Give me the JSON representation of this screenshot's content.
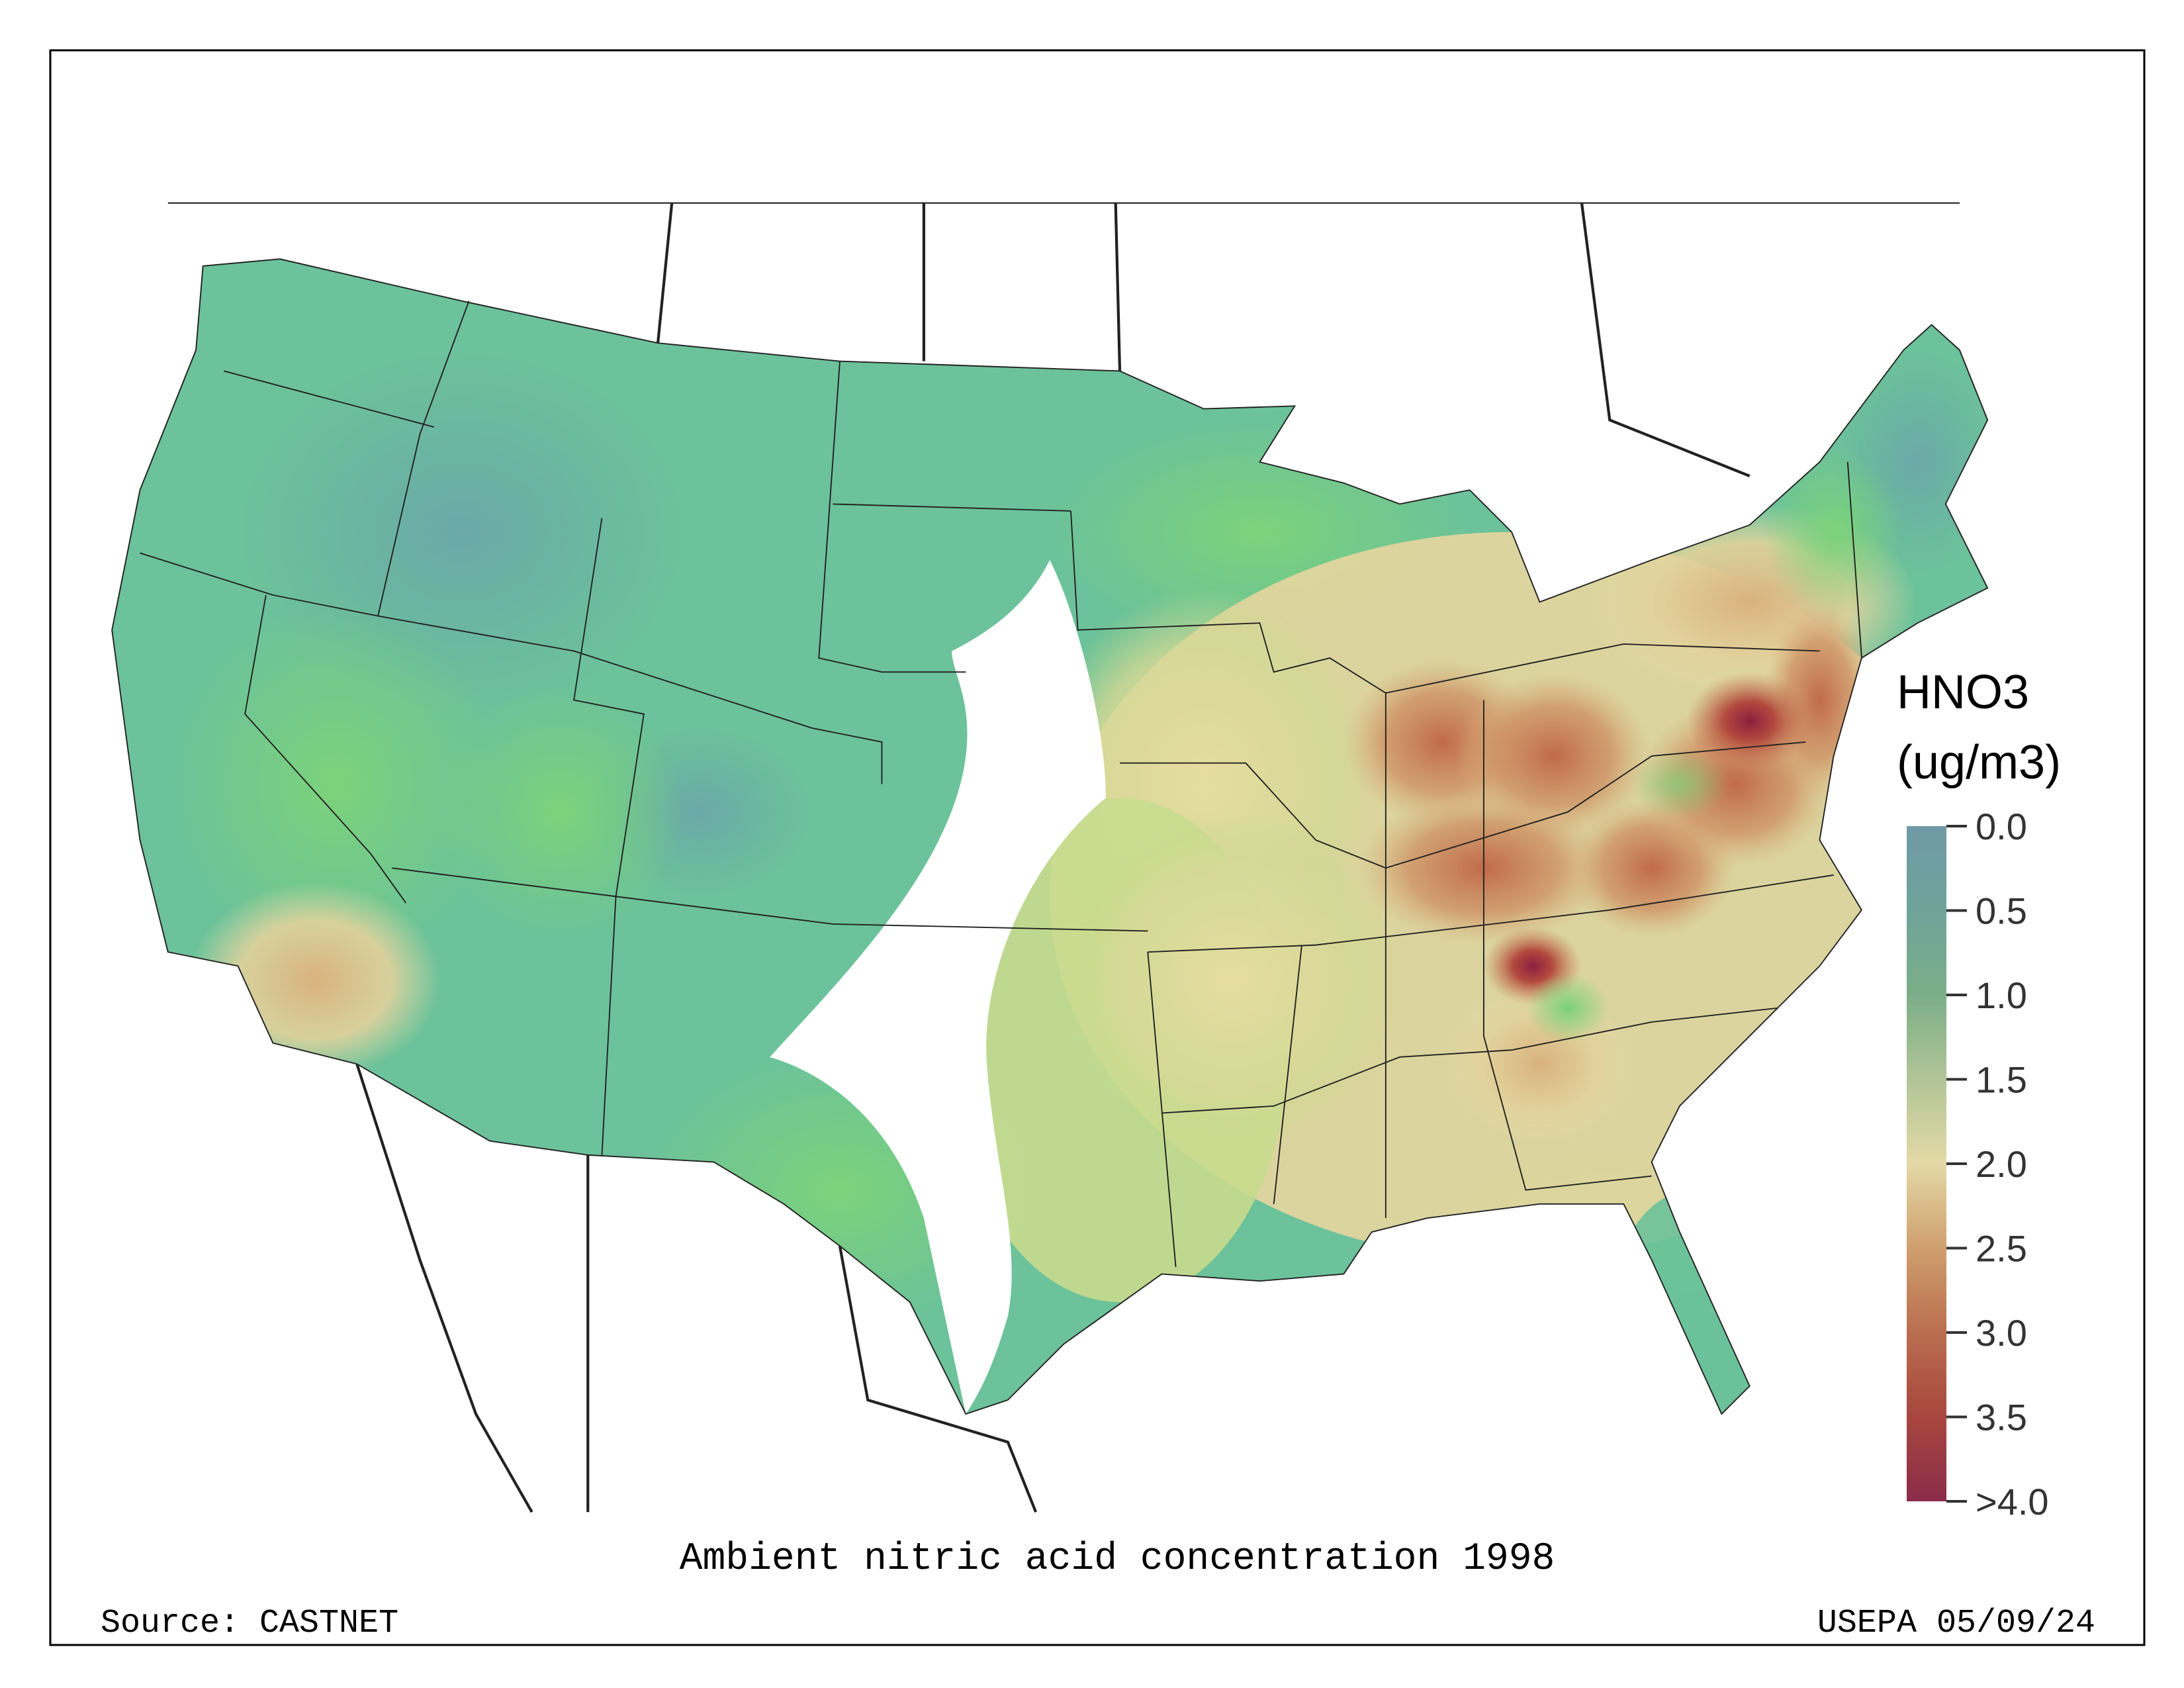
{
  "chart_data": {
    "type": "heatmap",
    "title": "Ambient nitric acid concentration 1998",
    "source": "Source: CASTNET",
    "credit": "USEPA 05/09/24",
    "legend": {
      "title_line1": "HNO3",
      "title_line2": "(ug/m3)",
      "placement": "right",
      "range": [
        0.0,
        4.0
      ],
      "ticks": [
        "0.0",
        "0.5",
        "1.0",
        "1.5",
        "2.0",
        "2.5",
        "3.0",
        "3.5",
        ">4.0"
      ],
      "tick_values": [
        0,
        0.5,
        1.0,
        1.5,
        2.0,
        2.5,
        3.0,
        3.5,
        4.0
      ],
      "colors": [
        "#6f9aa6",
        "#6fa39a",
        "#7bae87",
        "#b2c597",
        "#e3d9a6",
        "#cf9f6e",
        "#b96e4f",
        "#a8463e",
        "#8a2c4a"
      ]
    }
  }
}
